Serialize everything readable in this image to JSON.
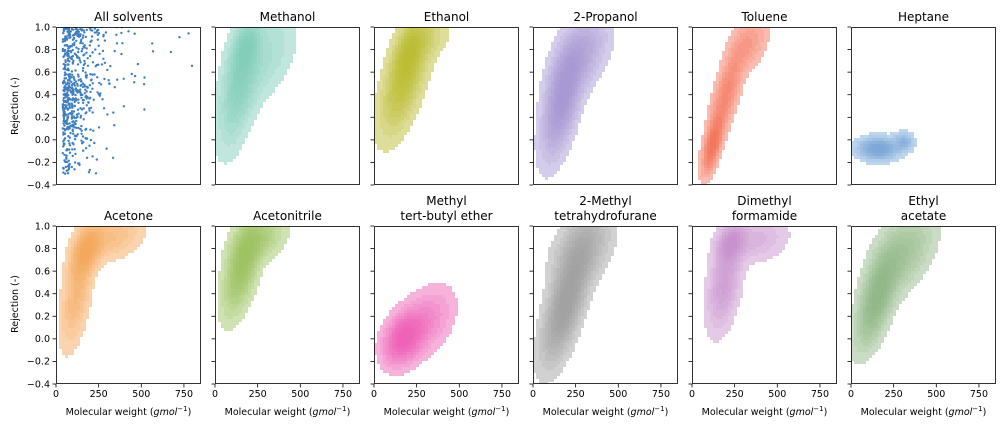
{
  "chart_data": {
    "type": "kde-grid",
    "xlabel_text": "Molecular weight (",
    "xlabel_unit": "gmol",
    "xlabel_exp": "−1",
    "xlabel_close": ")",
    "ylabel": "Rejection (-)",
    "xlim": [
      0,
      850
    ],
    "ylim": [
      -0.4,
      1.0
    ],
    "xticks": [
      "0",
      "250",
      "500",
      "750"
    ],
    "yticks": [
      "−0.4",
      "−0.2",
      "0.0",
      "0.2",
      "0.4",
      "0.6",
      "0.8",
      "1.0"
    ],
    "panels": [
      {
        "title_lines": [
          "All solvents"
        ],
        "kind": "scatter",
        "color": "#3f7fbf"
      },
      {
        "title_lines": [
          "Methanol"
        ],
        "kind": "kde",
        "color": "#74c8b3",
        "blobs": [
          {
            "cx": 150,
            "cy": 0.55,
            "sx": 75,
            "sy": 0.35,
            "rho": 0.55,
            "w": 1.0
          },
          {
            "cx": 180,
            "cy": 0.82,
            "sx": 45,
            "sy": 0.12,
            "rho": 0.4,
            "w": 0.7
          },
          {
            "cx": 320,
            "cy": 0.75,
            "sx": 100,
            "sy": 0.25,
            "rho": 0.5,
            "w": 0.35
          }
        ]
      },
      {
        "title_lines": [
          "Ethanol"
        ],
        "kind": "kde",
        "color": "#b5b520",
        "blobs": [
          {
            "cx": 180,
            "cy": 0.55,
            "sx": 85,
            "sy": 0.3,
            "rho": 0.6,
            "w": 1.0
          },
          {
            "cx": 200,
            "cy": 0.78,
            "sx": 50,
            "sy": 0.15,
            "rho": 0.5,
            "w": 0.6
          },
          {
            "cx": 300,
            "cy": 0.9,
            "sx": 90,
            "sy": 0.12,
            "rho": 0.3,
            "w": 0.3
          }
        ]
      },
      {
        "title_lines": [
          "2-Propanol"
        ],
        "kind": "kde",
        "color": "#9e8ed0",
        "blobs": [
          {
            "cx": 170,
            "cy": 0.35,
            "sx": 70,
            "sy": 0.3,
            "rho": 0.55,
            "w": 1.0
          },
          {
            "cx": 280,
            "cy": 0.75,
            "sx": 100,
            "sy": 0.22,
            "rho": 0.5,
            "w": 0.55
          }
        ]
      },
      {
        "title_lines": [
          "Toluene"
        ],
        "kind": "kde",
        "color": "#f46a50",
        "blobs": [
          {
            "cx": 120,
            "cy": -0.05,
            "sx": 35,
            "sy": 0.15,
            "rho": 0.6,
            "w": 1.0
          },
          {
            "cx": 200,
            "cy": 0.4,
            "sx": 60,
            "sy": 0.25,
            "rho": 0.7,
            "w": 0.6
          },
          {
            "cx": 330,
            "cy": 0.85,
            "sx": 70,
            "sy": 0.15,
            "rho": 0.4,
            "w": 0.35
          }
        ]
      },
      {
        "title_lines": [
          "Heptane"
        ],
        "kind": "kde",
        "color": "#6fa3d8",
        "blobs": [
          {
            "cx": 160,
            "cy": -0.08,
            "sx": 70,
            "sy": 0.06,
            "rho": 0.0,
            "w": 1.0
          },
          {
            "cx": 310,
            "cy": -0.02,
            "sx": 35,
            "sy": 0.05,
            "rho": 0.0,
            "w": 0.55
          }
        ]
      },
      {
        "title_lines": [
          "Acetone"
        ],
        "kind": "kde",
        "color": "#f5a04b",
        "blobs": [
          {
            "cx": 180,
            "cy": 0.78,
            "sx": 55,
            "sy": 0.14,
            "rho": 0.45,
            "w": 1.0
          },
          {
            "cx": 120,
            "cy": 0.4,
            "sx": 55,
            "sy": 0.28,
            "rho": 0.5,
            "w": 0.6
          },
          {
            "cx": 330,
            "cy": 0.9,
            "sx": 110,
            "sy": 0.12,
            "rho": 0.3,
            "w": 0.45
          }
        ]
      },
      {
        "title_lines": [
          "Acetonitrile"
        ],
        "kind": "kde",
        "color": "#93bf55",
        "blobs": [
          {
            "cx": 160,
            "cy": 0.65,
            "sx": 65,
            "sy": 0.25,
            "rho": 0.55,
            "w": 1.0
          },
          {
            "cx": 260,
            "cy": 0.88,
            "sx": 90,
            "sy": 0.12,
            "rho": 0.35,
            "w": 0.5
          }
        ]
      },
      {
        "title_lines": [
          "Methyl",
          "tert-butyl ether"
        ],
        "kind": "kde",
        "color": "#ee55b0",
        "blobs": [
          {
            "cx": 170,
            "cy": 0.0,
            "sx": 70,
            "sy": 0.14,
            "rho": 0.3,
            "w": 1.0
          },
          {
            "cx": 300,
            "cy": 0.15,
            "sx": 100,
            "sy": 0.18,
            "rho": 0.4,
            "w": 0.45
          }
        ]
      },
      {
        "title_lines": [
          "2-Methyl",
          "tetrahydrofurane"
        ],
        "kind": "kde",
        "color": "#9a9a9a",
        "blobs": [
          {
            "cx": 190,
            "cy": 0.3,
            "sx": 80,
            "sy": 0.3,
            "rho": 0.65,
            "w": 1.0
          },
          {
            "cx": 290,
            "cy": 0.8,
            "sx": 100,
            "sy": 0.2,
            "rho": 0.4,
            "w": 0.55
          }
        ]
      },
      {
        "title_lines": [
          "Dimethyl",
          "formamide"
        ],
        "kind": "kde",
        "color": "#c489c9",
        "blobs": [
          {
            "cx": 230,
            "cy": 0.85,
            "sx": 50,
            "sy": 0.1,
            "rho": 0.3,
            "w": 1.0
          },
          {
            "cx": 190,
            "cy": 0.5,
            "sx": 60,
            "sy": 0.25,
            "rho": 0.4,
            "w": 0.8
          },
          {
            "cx": 380,
            "cy": 0.88,
            "sx": 110,
            "sy": 0.12,
            "rho": 0.2,
            "w": 0.4
          }
        ]
      },
      {
        "title_lines": [
          "Ethyl",
          "acetate"
        ],
        "kind": "kde",
        "color": "#8ab27e",
        "blobs": [
          {
            "cx": 150,
            "cy": 0.35,
            "sx": 70,
            "sy": 0.25,
            "rho": 0.6,
            "w": 1.0
          },
          {
            "cx": 300,
            "cy": 0.75,
            "sx": 110,
            "sy": 0.22,
            "rho": 0.5,
            "w": 0.55
          }
        ]
      }
    ]
  }
}
